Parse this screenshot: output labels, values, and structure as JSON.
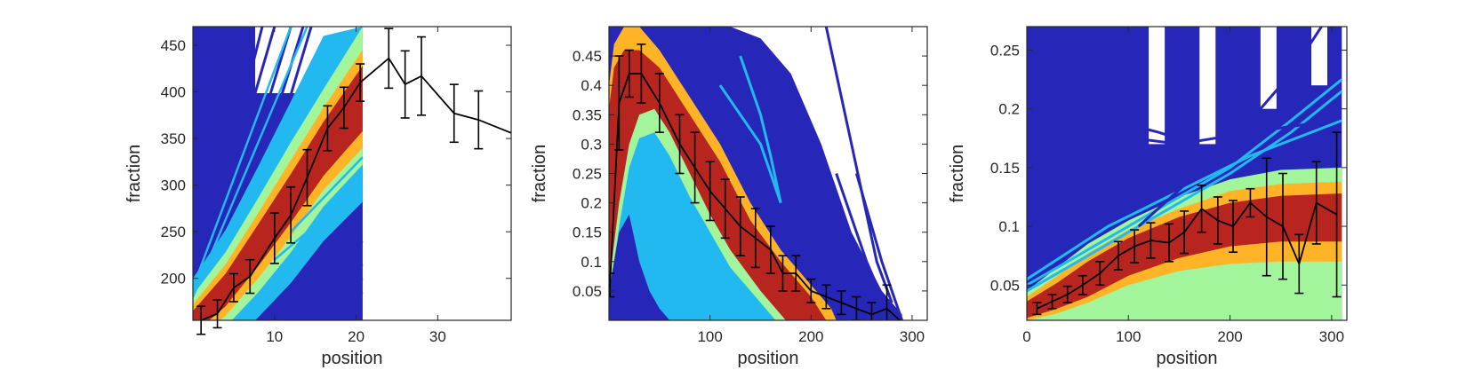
{
  "chart_data": [
    {
      "type": "line",
      "xlabel": "position",
      "ylabel": "fraction",
      "xlim": [
        0,
        39
      ],
      "ylim": [
        155,
        470
      ],
      "xticks": [
        10,
        20,
        30
      ],
      "yticks": [
        200,
        250,
        300,
        350,
        400,
        450
      ],
      "colors": {
        "dark": "#2626b8",
        "light": "#22b8f0",
        "green": "#a2f59a",
        "orange": "#ffb326",
        "red": "#b8251f",
        "mean": "#000000"
      },
      "band_x_max": 20.8,
      "bands": {
        "red": {
          "x": [
            0,
            4,
            8,
            12,
            16,
            20.8
          ],
          "lower": [
            140,
            170,
            213,
            260,
            310,
            358
          ],
          "upper": [
            165,
            205,
            258,
            312,
            368,
            428
          ]
        },
        "orange": {
          "x": [
            0,
            4,
            8,
            12,
            16,
            20.8
          ],
          "lower": [
            130,
            160,
            200,
            245,
            295,
            340
          ],
          "upper": [
            172,
            215,
            270,
            327,
            383,
            445
          ]
        },
        "green": {
          "x": [
            0,
            4,
            8,
            12,
            16,
            20.8
          ],
          "lower": [
            120,
            148,
            185,
            228,
            277,
            322
          ],
          "upper": [
            182,
            228,
            286,
            346,
            403,
            470
          ]
        },
        "light": {
          "x": [
            0,
            4,
            8,
            12,
            16,
            20.8
          ],
          "lower": [
            100,
            125,
            158,
            195,
            240,
            282
          ],
          "upper": [
            200,
            252,
            320,
            390,
            460,
            470
          ]
        }
      },
      "dark_lines": [
        {
          "x": [
            0,
            7
          ],
          "y": [
            240,
            470
          ]
        },
        {
          "x": [
            0,
            4.5
          ],
          "y": [
            280,
            470
          ]
        },
        {
          "x": [
            1,
            8.5
          ],
          "y": [
            210,
            470
          ]
        },
        {
          "x": [
            2,
            10
          ],
          "y": [
            230,
            470
          ]
        },
        {
          "x": [
            4,
            12
          ],
          "y": [
            240,
            470
          ]
        },
        {
          "x": [
            6,
            13.5
          ],
          "y": [
            260,
            470
          ]
        },
        {
          "x": [
            8,
            14.5
          ],
          "y": [
            280,
            470
          ]
        },
        {
          "x": [
            0,
            20.8
          ],
          "y": [
            160,
            240
          ]
        },
        {
          "x": [
            3,
            20.8
          ],
          "y": [
            158,
            215
          ]
        },
        {
          "x": [
            6,
            20.8
          ],
          "y": [
            156,
            200
          ]
        },
        {
          "x": [
            10,
            20.8
          ],
          "y": [
            156,
            185
          ]
        }
      ],
      "light_lines": [
        {
          "x": [
            0,
            12
          ],
          "y": [
            190,
            470
          ]
        },
        {
          "x": [
            0,
            14
          ],
          "y": [
            180,
            470
          ]
        },
        {
          "x": [
            12,
            20.8
          ],
          "y": [
            250,
            330
          ]
        },
        {
          "x": [
            10,
            20.8
          ],
          "y": [
            220,
            300
          ]
        }
      ],
      "mean": {
        "x": [
          1,
          3,
          5,
          7,
          10,
          12,
          14,
          16.5,
          18.5,
          20.5,
          24,
          26,
          28,
          32,
          35,
          39
        ],
        "y": [
          155,
          162,
          190,
          202,
          243,
          268,
          308,
          361,
          383,
          410,
          436,
          408,
          417,
          377,
          370,
          356
        ],
        "err": [
          15,
          15,
          15,
          18,
          27,
          30,
          30,
          24,
          22,
          20,
          32,
          36,
          42,
          31,
          31,
          0
        ]
      }
    },
    {
      "type": "line",
      "xlabel": "position",
      "ylabel": "fraction",
      "xlim": [
        0,
        315
      ],
      "ylim": [
        0,
        0.5
      ],
      "xticks": [
        100,
        200,
        300
      ],
      "yticks": [
        0.05,
        0.1,
        0.15,
        0.2,
        0.25,
        0.3,
        0.35,
        0.4,
        0.45
      ],
      "colors": {
        "dark": "#2626b8",
        "light": "#22b8f0",
        "green": "#a2f59a",
        "orange": "#ffb326",
        "red": "#b8251f",
        "mean": "#000000"
      },
      "bands": {
        "dark": {
          "x": [
            0,
            5,
            20,
            40,
            60,
            90,
            120,
            150,
            180,
            210,
            240,
            270,
            290
          ],
          "lower": [
            0,
            0,
            0,
            0,
            0,
            0,
            0,
            0,
            0,
            0,
            0,
            0,
            0
          ],
          "upper": [
            0.5,
            0.5,
            0.5,
            0.5,
            0.5,
            0.5,
            0.5,
            0.48,
            0.42,
            0.3,
            0.15,
            0.05,
            0.01
          ]
        },
        "orange": {
          "x": [
            0,
            5,
            15,
            30,
            50,
            80,
            110,
            140,
            170,
            200,
            220,
            225
          ],
          "lower": [
            0,
            0,
            0,
            0,
            0,
            0,
            0,
            0,
            0,
            0,
            0,
            0
          ],
          "upper": [
            0.4,
            0.47,
            0.5,
            0.5,
            0.46,
            0.38,
            0.3,
            0.2,
            0.12,
            0.06,
            0.02,
            0
          ]
        },
        "red": {
          "x": [
            0,
            5,
            15,
            30,
            50,
            80,
            110,
            140,
            170,
            200,
            215
          ],
          "lower": [
            0,
            0,
            0,
            0,
            0,
            0,
            0,
            0,
            0,
            0,
            0
          ],
          "upper": [
            0.36,
            0.43,
            0.46,
            0.46,
            0.43,
            0.35,
            0.27,
            0.17,
            0.1,
            0.04,
            0
          ]
        },
        "green": {
          "x": [
            0,
            10,
            20,
            30,
            45,
            60,
            80,
            100,
            120,
            150,
            175
          ],
          "lower": [
            0,
            0,
            0,
            0,
            0,
            0,
            0,
            0,
            0,
            0,
            0
          ],
          "upper": [
            0.06,
            0.2,
            0.3,
            0.35,
            0.36,
            0.32,
            0.25,
            0.18,
            0.12,
            0.05,
            0
          ]
        },
        "light": {
          "x": [
            0,
            10,
            20,
            30,
            45,
            60,
            80,
            100,
            120,
            150,
            165
          ],
          "lower": [
            0,
            0,
            0,
            0,
            0,
            0,
            0,
            0,
            0,
            0,
            0
          ],
          "upper": [
            0.04,
            0.16,
            0.26,
            0.31,
            0.32,
            0.28,
            0.21,
            0.15,
            0.09,
            0.03,
            0
          ]
        },
        "dark_inner": {
          "x": [
            0,
            10,
            20,
            30,
            40,
            50,
            60
          ],
          "lower": [
            0,
            0,
            0,
            0,
            0,
            0,
            0
          ],
          "upper": [
            0.05,
            0.15,
            0.18,
            0.1,
            0.05,
            0.02,
            0
          ]
        }
      },
      "dark_lines": [
        {
          "x": [
            215,
            240,
            265,
            280
          ],
          "y": [
            0.5,
            0.3,
            0.1,
            0.03
          ]
        },
        {
          "x": [
            225,
            255,
            275
          ],
          "y": [
            0.25,
            0.1,
            0.02
          ]
        },
        {
          "x": [
            245,
            270,
            290
          ],
          "y": [
            0.25,
            0.1,
            0.0
          ]
        }
      ],
      "light_lines": [
        {
          "x": [
            130,
            150,
            160,
            170
          ],
          "y": [
            0.45,
            0.35,
            0.28,
            0.2
          ]
        },
        {
          "x": [
            110,
            150,
            170
          ],
          "y": [
            0.4,
            0.3,
            0.2
          ]
        }
      ],
      "mean": {
        "x": [
          1,
          10,
          20,
          32,
          50,
          70,
          85,
          100,
          115,
          130,
          145,
          160,
          172,
          185,
          200,
          215,
          230,
          245,
          260,
          275,
          288
        ],
        "y": [
          0.06,
          0.37,
          0.42,
          0.42,
          0.37,
          0.3,
          0.26,
          0.22,
          0.19,
          0.16,
          0.14,
          0.12,
          0.08,
          0.08,
          0.05,
          0.04,
          0.03,
          0.02,
          0.01,
          0.02,
          0.0
        ],
        "err": [
          0.02,
          0.08,
          0.04,
          0.05,
          0.05,
          0.05,
          0.06,
          0.05,
          0.05,
          0.05,
          0.05,
          0.04,
          0.03,
          0.03,
          0.02,
          0.02,
          0.02,
          0.02,
          0.02,
          0.04,
          0.0
        ]
      }
    },
    {
      "type": "line",
      "xlabel": "position",
      "ylabel": "fraction",
      "xlim": [
        0,
        315
      ],
      "ylim": [
        0.02,
        0.27
      ],
      "xticks": [
        0,
        100,
        200,
        300
      ],
      "yticks": [
        0.05,
        0.1,
        0.15,
        0.2,
        0.25
      ],
      "colors": {
        "dark": "#2626b8",
        "light": "#22b8f0",
        "green": "#a2f59a",
        "orange": "#ffb326",
        "red": "#b8251f",
        "mean": "#000000"
      },
      "bands": {
        "dark": {
          "x": [
            0,
            30,
            60,
            100,
            150,
            200,
            250,
            300,
            310
          ],
          "lower": [
            0.02,
            0.02,
            0.02,
            0.02,
            0.02,
            0.02,
            0.02,
            0.02,
            0.02
          ],
          "upper": [
            0.27,
            0.27,
            0.27,
            0.27,
            0.27,
            0.27,
            0.27,
            0.27,
            0.27
          ]
        },
        "green": {
          "x": [
            0,
            30,
            60,
            100,
            150,
            200,
            250,
            310
          ],
          "lower": [
            0.02,
            0.02,
            0.02,
            0.02,
            0.02,
            0.02,
            0.02,
            0.02
          ],
          "upper": [
            0.045,
            0.065,
            0.085,
            0.105,
            0.125,
            0.14,
            0.148,
            0.15
          ]
        },
        "orange": {
          "x": [
            0,
            30,
            60,
            100,
            150,
            200,
            250,
            310
          ],
          "lower": [
            0.02,
            0.026,
            0.035,
            0.05,
            0.062,
            0.068,
            0.07,
            0.07
          ],
          "upper": [
            0.04,
            0.058,
            0.077,
            0.097,
            0.115,
            0.13,
            0.136,
            0.138
          ]
        },
        "red": {
          "x": [
            0,
            30,
            60,
            100,
            150,
            200,
            250,
            310
          ],
          "lower": [
            0.022,
            0.03,
            0.04,
            0.058,
            0.073,
            0.083,
            0.087,
            0.087
          ],
          "upper": [
            0.036,
            0.052,
            0.07,
            0.09,
            0.108,
            0.12,
            0.126,
            0.128
          ]
        },
        "light_box": {
          "x": [
            0,
            300,
            300,
            0
          ],
          "lower": [
            0.02,
            0.02,
            0.02,
            0.02
          ],
          "upper": [
            0.065,
            0.065,
            0.065,
            0.065
          ]
        }
      },
      "light_lines": [
        {
          "x": [
            0,
            60,
            120,
            200,
            260,
            310
          ],
          "y": [
            0.05,
            0.08,
            0.11,
            0.15,
            0.19,
            0.225
          ]
        },
        {
          "x": [
            0,
            60,
            130,
            200,
            260,
            310
          ],
          "y": [
            0.045,
            0.075,
            0.11,
            0.145,
            0.18,
            0.215
          ]
        },
        {
          "x": [
            0,
            80,
            150,
            220,
            310
          ],
          "y": [
            0.055,
            0.1,
            0.13,
            0.16,
            0.19
          ]
        }
      ],
      "dark_lines": [
        {
          "x": [
            110,
            200,
            260,
            290
          ],
          "y": [
            0.1,
            0.17,
            0.23,
            0.27
          ]
        },
        {
          "x": [
            40,
            130,
            200
          ],
          "y": [
            0.2,
            0.18,
            0.16
          ]
        },
        {
          "x": [
            60,
            150,
            220,
            300
          ],
          "y": [
            0.18,
            0.17,
            0.18,
            0.19
          ]
        }
      ],
      "mean": {
        "x": [
          10,
          25,
          40,
          55,
          72,
          90,
          106,
          122,
          140,
          155,
          172,
          188,
          203,
          220,
          236,
          252,
          268,
          285,
          305
        ],
        "y": [
          0.03,
          0.036,
          0.042,
          0.05,
          0.06,
          0.075,
          0.083,
          0.088,
          0.086,
          0.095,
          0.115,
          0.105,
          0.1,
          0.12,
          0.108,
          0.1,
          0.068,
          0.12,
          0.11
        ],
        "err": [
          0.005,
          0.006,
          0.007,
          0.008,
          0.01,
          0.012,
          0.014,
          0.015,
          0.016,
          0.018,
          0.02,
          0.02,
          0.022,
          0.012,
          0.05,
          0.045,
          0.025,
          0.035,
          0.07
        ]
      }
    }
  ]
}
